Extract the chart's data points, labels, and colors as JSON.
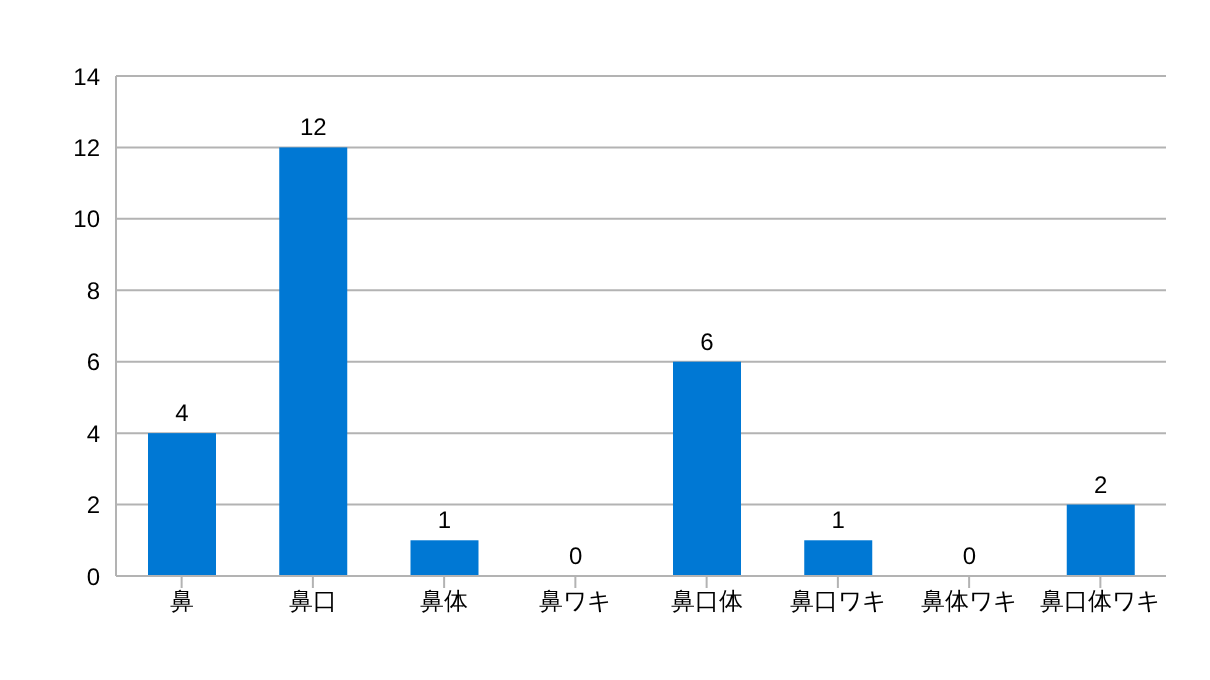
{
  "chart_data": {
    "type": "bar",
    "categories": [
      "鼻",
      "鼻口",
      "鼻体",
      "鼻ワキ",
      "鼻口体",
      "鼻口ワキ",
      "鼻体ワキ",
      "鼻口体ワキ"
    ],
    "values": [
      4,
      12,
      1,
      0,
      6,
      1,
      0,
      2
    ],
    "color": "#0078d4",
    "ylim": [
      0,
      14
    ],
    "yticks": [
      0,
      2,
      4,
      6,
      8,
      10,
      12,
      14
    ],
    "grid": "y",
    "data_labels": true
  }
}
